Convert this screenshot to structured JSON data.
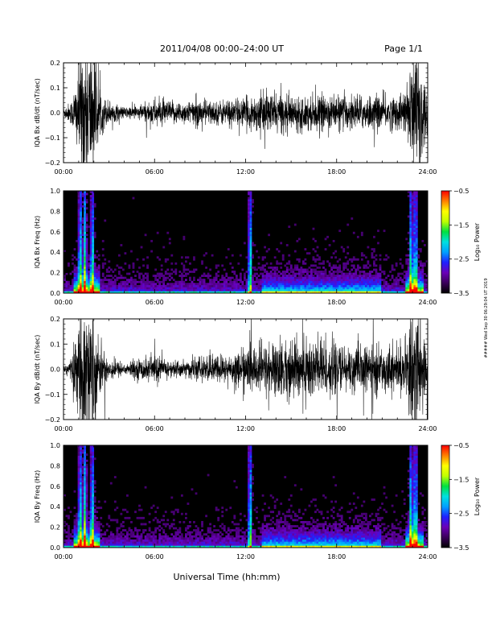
{
  "header": {
    "title": "2011/04/08  00:00–24:00 UT",
    "page_label": "Page 1/1"
  },
  "side_note": "##### Wed Sep 30 06:29:04 UT 2019",
  "colors": {
    "trace": "#000000",
    "spectrogram_background": "#000000",
    "colorbar_stops": [
      "#000000",
      "#3a005a",
      "#6a00b8",
      "#2020ff",
      "#00a0ff",
      "#00e0e0",
      "#00e040",
      "#c0ff00",
      "#ffff00",
      "#ff8000",
      "#ff0000"
    ]
  },
  "x_axis": {
    "label": "Universal Time (hh:mm)",
    "ticks": [
      "00:00",
      "06:00",
      "12:00",
      "18:00",
      "24:00"
    ]
  },
  "panels": [
    {
      "type": "line",
      "ylabel": "IQA Bx dB/dt (nT/sec)",
      "yticks": [
        "0.2",
        "0.1",
        "0.0",
        "−0.1",
        "−0.2"
      ]
    },
    {
      "type": "heatmap",
      "ylabel": "IQA Bx Freq (Hz)",
      "yticks": [
        "1.0",
        "0.8",
        "0.6",
        "0.4",
        "0.2",
        "0.0"
      ],
      "colorbar_label": "Log₁₀ Power",
      "colorbar_ticks": [
        "−0.5",
        "−1.5",
        "−2.5",
        "−3.5"
      ]
    },
    {
      "type": "line",
      "ylabel": "IQA By dB/dt (nT/sec)",
      "yticks": [
        "0.2",
        "0.1",
        "0.0",
        "−0.1",
        "−0.2"
      ]
    },
    {
      "type": "heatmap",
      "ylabel": "IQA By Freq (Hz)",
      "yticks": [
        "1.0",
        "0.8",
        "0.6",
        "0.4",
        "0.2",
        "0.0"
      ],
      "colorbar_label": "Log₁₀ Power",
      "colorbar_ticks": [
        "−0.5",
        "−1.5",
        "−2.5",
        "−3.5"
      ]
    }
  ],
  "chart_data": [
    {
      "type": "line",
      "title": "2011/04/08  00:00–24:00 UT",
      "ylabel": "IQA Bx dB/dt (nT/sec)",
      "xlabel": "Universal Time (hh:mm)",
      "xlim": [
        0,
        24
      ],
      "ylim": [
        -0.2,
        0.2
      ],
      "envelope_hours": [
        0,
        0.5,
        1.0,
        1.2,
        1.5,
        1.8,
        2.0,
        2.3,
        2.8,
        3.5,
        4.0,
        5.2,
        6.0,
        7.0,
        8.0,
        9.0,
        10.0,
        11.0,
        12.0,
        12.5,
        13.0,
        14.0,
        15.0,
        16.0,
        17.0,
        18.0,
        19.0,
        20.0,
        21.0,
        22.0,
        22.7,
        23.0,
        23.3,
        23.6,
        24.0
      ],
      "envelope_amplitude": [
        0.02,
        0.04,
        0.16,
        0.25,
        0.25,
        0.25,
        0.22,
        0.09,
        0.05,
        0.03,
        0.02,
        0.03,
        0.05,
        0.04,
        0.04,
        0.05,
        0.04,
        0.05,
        0.05,
        0.06,
        0.07,
        0.07,
        0.06,
        0.06,
        0.06,
        0.06,
        0.06,
        0.06,
        0.06,
        0.06,
        0.09,
        0.25,
        0.25,
        0.22,
        0.05
      ]
    },
    {
      "type": "heatmap",
      "ylabel": "IQA Bx Freq (Hz)",
      "xlabel": "Universal Time (hh:mm)",
      "xlim": [
        0,
        24
      ],
      "ylim": [
        0,
        1.0
      ],
      "colorbar_label": "Log₁₀ Power",
      "color_range": [
        -3.5,
        -0.5
      ],
      "color_ticks": [
        -0.5,
        -1.5,
        -2.5,
        -3.5
      ],
      "broadband_bursts_hours": [
        1.1,
        1.4,
        1.9,
        12.3,
        22.9,
        23.2
      ],
      "noise_floor_log_power": -3.5
    },
    {
      "type": "line",
      "ylabel": "IQA By dB/dt (nT/sec)",
      "xlabel": "Universal Time (hh:mm)",
      "xlim": [
        0,
        24
      ],
      "ylim": [
        -0.2,
        0.2
      ],
      "envelope_hours": [
        0,
        0.5,
        1.0,
        1.2,
        1.5,
        1.8,
        2.0,
        2.3,
        2.8,
        3.5,
        4.0,
        5.2,
        6.0,
        7.0,
        8.0,
        9.0,
        10.0,
        11.0,
        12.0,
        12.5,
        13.0,
        14.0,
        15.0,
        16.0,
        17.0,
        18.0,
        19.0,
        20.0,
        21.0,
        22.0,
        22.7,
        23.0,
        23.3,
        23.6,
        24.0
      ],
      "envelope_amplitude": [
        0.02,
        0.04,
        0.15,
        0.25,
        0.25,
        0.25,
        0.2,
        0.1,
        0.05,
        0.03,
        0.02,
        0.04,
        0.05,
        0.03,
        0.03,
        0.04,
        0.05,
        0.05,
        0.08,
        0.08,
        0.09,
        0.1,
        0.1,
        0.12,
        0.12,
        0.08,
        0.08,
        0.08,
        0.08,
        0.08,
        0.1,
        0.25,
        0.25,
        0.22,
        0.06
      ]
    },
    {
      "type": "heatmap",
      "ylabel": "IQA By Freq (Hz)",
      "xlabel": "Universal Time (hh:mm)",
      "xlim": [
        0,
        24
      ],
      "ylim": [
        0,
        1.0
      ],
      "colorbar_label": "Log₁₀ Power",
      "color_range": [
        -3.5,
        -0.5
      ],
      "color_ticks": [
        -0.5,
        -1.5,
        -2.5,
        -3.5
      ],
      "broadband_bursts_hours": [
        1.1,
        1.4,
        1.9,
        12.3,
        22.9,
        23.2
      ],
      "noise_floor_log_power": -3.5
    }
  ]
}
